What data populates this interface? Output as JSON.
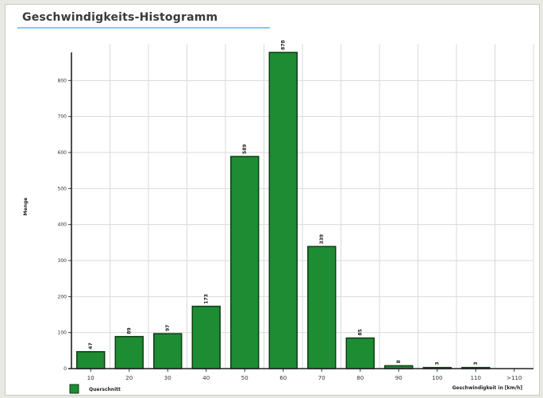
{
  "chart_data": {
    "type": "bar",
    "title": "Geschwindigkeits-Histogramm",
    "xlabel": "Geschwindigkeit in [km/h]",
    "ylabel": "Menge",
    "categories": [
      "10",
      "20",
      "30",
      "40",
      "50",
      "60",
      "70",
      "80",
      "90",
      "100",
      "110",
      ">110"
    ],
    "series": [
      {
        "name": "Querschnitt",
        "values": [
          47,
          89,
          97,
          173,
          589,
          878,
          339,
          85,
          8,
          3,
          3,
          0
        ],
        "value_labels": [
          "47",
          "89",
          "97",
          "173",
          "589",
          "878",
          "339",
          "85",
          "8",
          "3",
          "3",
          ""
        ]
      }
    ],
    "ylim": [
      0,
      900
    ],
    "yticks": [
      0,
      100,
      200,
      300,
      400,
      500,
      600,
      700,
      800
    ],
    "grid": true,
    "legend": "bottom-left",
    "colors": {
      "bar_fill": "#1e8c32",
      "bar_stroke": "#0e3d16",
      "grid": "#d9d9d9",
      "title_underline": "#8ec7e6"
    }
  }
}
